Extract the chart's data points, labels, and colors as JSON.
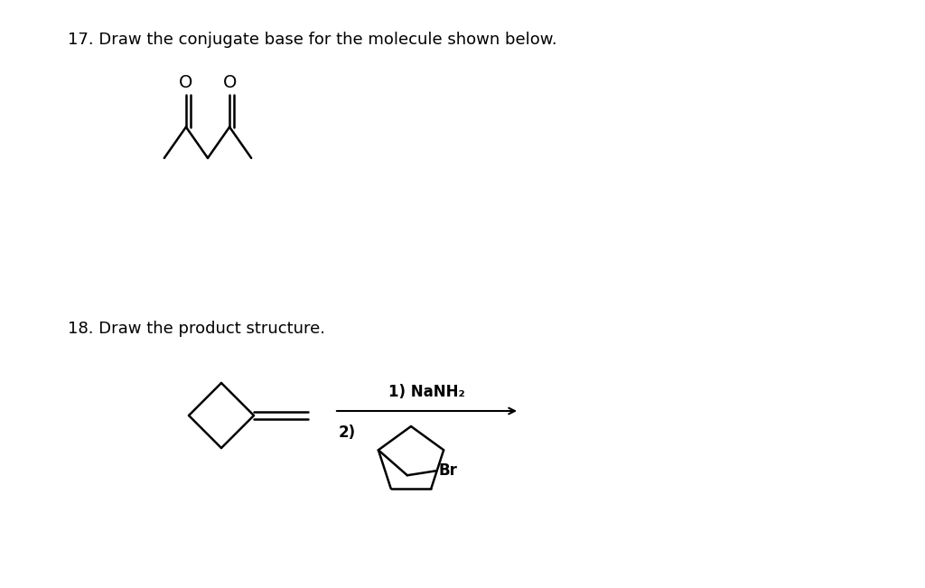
{
  "background_color": "#ffffff",
  "title17": "17. Draw the conjugate base for the molecule shown below.",
  "title18": "18. Draw the product structure.",
  "title_fontsize": 13,
  "title_fontweight": "normal",
  "line_color": "#000000",
  "line_width": 1.8,
  "text_color": "#000000",
  "label_nanh2": "1) NaNH₂",
  "label_2": "2)",
  "label_br": "Br",
  "label_o1": "O",
  "label_o2": "O"
}
